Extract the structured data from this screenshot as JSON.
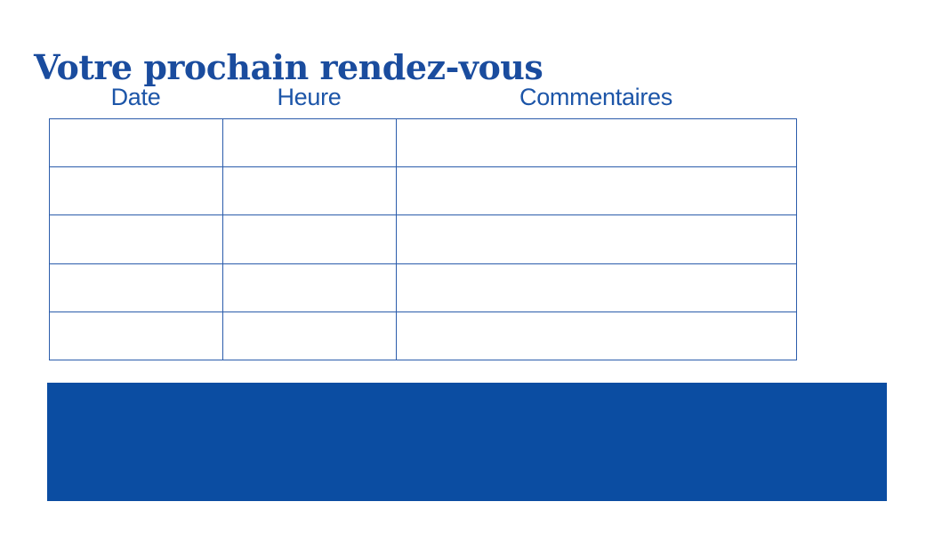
{
  "page": {
    "title": "Votre prochain rendez-vous"
  },
  "table": {
    "columns": [
      {
        "label": "Date"
      },
      {
        "label": "Heure"
      },
      {
        "label": "Commentaires"
      }
    ],
    "rows": [
      [
        "",
        "",
        ""
      ],
      [
        "",
        "",
        ""
      ],
      [
        "",
        "",
        ""
      ],
      [
        "",
        "",
        ""
      ],
      [
        "",
        "",
        ""
      ]
    ]
  },
  "colors": {
    "title_text": "#1a4c9e",
    "header_text": "#1c55a8",
    "table_border": "#2b5cab",
    "footer_block_fill": "#0b4da2",
    "background": "#ffffff"
  }
}
